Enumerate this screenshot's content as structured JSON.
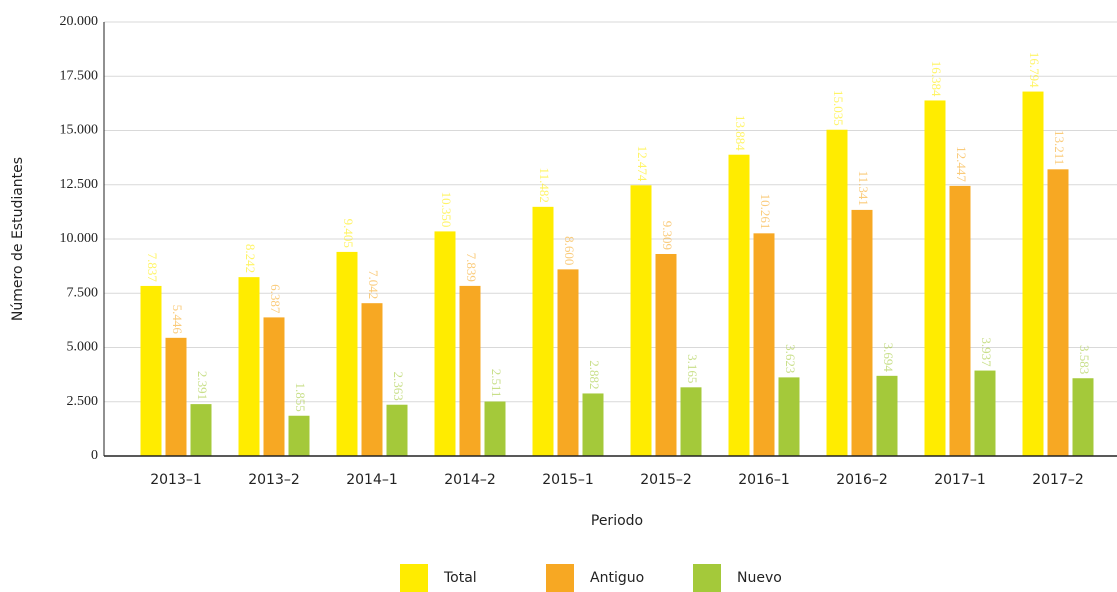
{
  "chart_data": {
    "type": "bar",
    "x_label": "Periodo",
    "y_label": "Número de Estudiantes",
    "categories": [
      "2013–1",
      "2013–2",
      "2014–1",
      "2014–2",
      "2015–1",
      "2015–2",
      "2016–1",
      "2016–2",
      "2017–1",
      "2017–2"
    ],
    "series": [
      {
        "name": "Total",
        "color": "#ffec00",
        "values": [
          7837,
          8242,
          9405,
          10350,
          11482,
          12474,
          13884,
          15035,
          16384,
          16794
        ],
        "value_labels": [
          "7.837",
          "8.242",
          "9.405",
          "10.350",
          "11.482",
          "12.474",
          "13.884",
          "15.035",
          "16.384",
          "16.794"
        ]
      },
      {
        "name": "Antiguo",
        "color": "#f7a823",
        "values": [
          5446,
          6387,
          7042,
          7839,
          8600,
          9309,
          10261,
          11341,
          12447,
          13211
        ],
        "value_labels": [
          "5.446",
          "6.387",
          "7.042",
          "7.839",
          "8.600",
          "9.309",
          "10.261",
          "11.341",
          "12.447",
          "13.211"
        ]
      },
      {
        "name": "Nuevo",
        "color": "#a4c93a",
        "values": [
          2391,
          1855,
          2363,
          2511,
          2882,
          3165,
          3623,
          3694,
          3937,
          3583
        ],
        "value_labels": [
          "2.391",
          "1.855",
          "2.363",
          "2.511",
          "2.882",
          "3.165",
          "3.623",
          "3.694",
          "3.937",
          "3.583"
        ]
      }
    ],
    "ylim": [
      0,
      20000
    ],
    "yticks": [
      0,
      {
        "value": 2500,
        "label": "2.500"
      },
      {
        "value": 5000,
        "label": "5.000"
      },
      {
        "value": 7500,
        "label": "7.500"
      },
      {
        "value": 10000,
        "label": "10.000"
      },
      {
        "value": 12500,
        "label": "12.500"
      },
      {
        "value": 15000,
        "label": "15.000"
      },
      {
        "value": 17500,
        "label": "17.500"
      },
      {
        "value": 20000,
        "label": "20.000"
      }
    ],
    "grid": true,
    "legend": "bottom"
  }
}
